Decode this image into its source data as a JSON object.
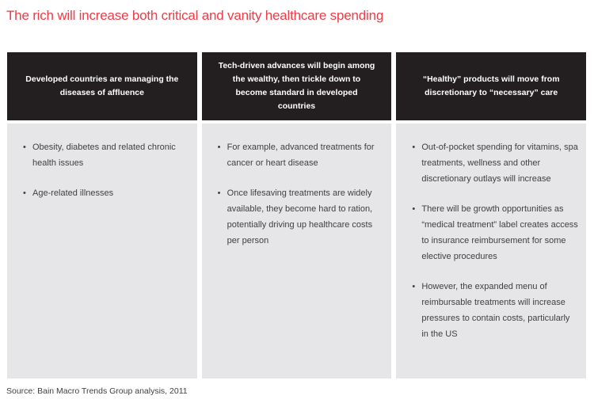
{
  "title": "The rich will increase both critical and vanity healthcare spending",
  "columns": [
    {
      "header": "Developed countries are managing the diseases of affluence",
      "bullets": [
        "Obesity, diabetes and related chronic health issues",
        "Age-related illnesses"
      ]
    },
    {
      "header": "Tech-driven advances will begin among the wealthy, then trickle down to become standard in developed countries",
      "bullets": [
        "For example, advanced treatments for cancer or heart disease",
        "Once lifesaving treatments are widely available, they become hard to ration, potentially driving up healthcare costs per person"
      ]
    },
    {
      "header": "“Healthy” products will move from discretionary to “necessary” care",
      "bullets": [
        "Out-of-pocket spending for vitamins, spa treatments, wellness and other discretionary outlays will increase",
        "There will be growth opportunities as “medical treatment” label creates access to insurance reimbursement for some elective procedures",
        "However, the expanded menu of reimbursable treatments will increase pressures to contain costs, particularly in the US"
      ]
    }
  ],
  "bullet_glyph": "•",
  "source": "Source: Bain Macro Trends Group analysis, 2011",
  "colors": {
    "title_red": "#ee3b46",
    "header_bg": "#231f20",
    "body_bg": "#e6e6e8",
    "text": "#404042"
  }
}
